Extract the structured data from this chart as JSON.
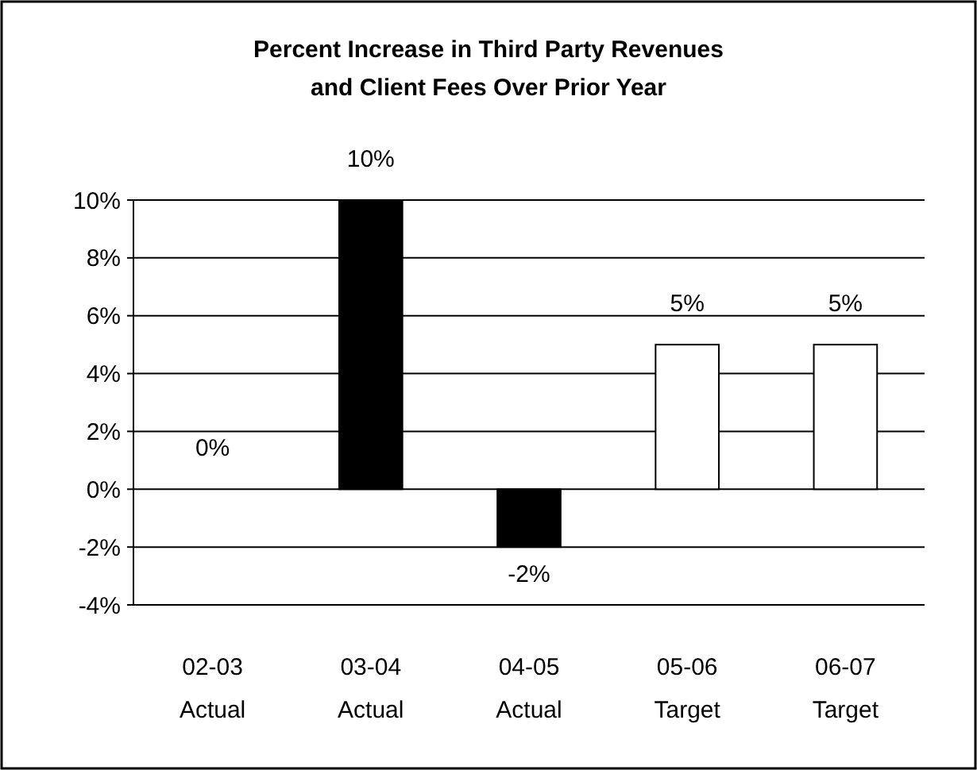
{
  "chart_data": {
    "type": "bar",
    "title": "Percent Increase in Third Party Revenues\nand Client Fees Over Prior Year",
    "categories": [
      "02-03\nActual",
      "03-04\nActual",
      "04-05\nActual",
      "05-06\nTarget",
      "06-07\nTarget"
    ],
    "values": [
      0,
      10,
      -2,
      5,
      5
    ],
    "colors": [
      "#000000",
      "#000000",
      "#000000",
      "#ffffff",
      "#ffffff"
    ],
    "value_labels": [
      "0%",
      "10%",
      "-2%",
      "5%",
      "5%"
    ],
    "ylim": [
      -4,
      10
    ],
    "yticks": [
      {
        "value": -4,
        "label": "-4%"
      },
      {
        "value": -2,
        "label": "-2%"
      },
      {
        "value": 0,
        "label": "0%"
      },
      {
        "value": 2,
        "label": "2%"
      },
      {
        "value": 4,
        "label": "4%"
      },
      {
        "value": 6,
        "label": "6%"
      },
      {
        "value": 8,
        "label": "8%"
      },
      {
        "value": 10,
        "label": "10%"
      }
    ],
    "grid": "y"
  }
}
